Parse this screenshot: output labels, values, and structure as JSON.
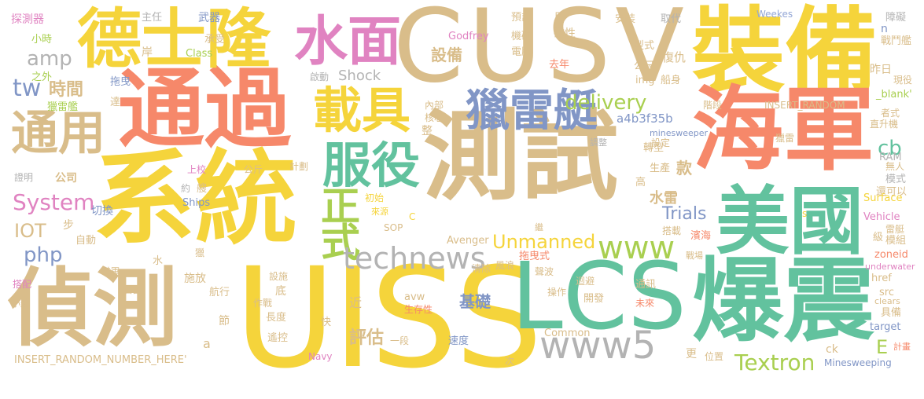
{
  "colors": {
    "tan": "#d9bd8a",
    "yellow": "#f5d43b",
    "orange": "#f6886a",
    "green": "#62c29e",
    "blue": "#8196c6",
    "pink": "#e083c1",
    "lime": "#a9cf50",
    "gray": "#b3b3b3",
    "lightblue": "#94a7d6",
    "lightgreen": "#9fd7a8"
  },
  "words": [
    "系統",
    "測試",
    "通過",
    "CUSV",
    "裝備",
    "UISS",
    "偵測",
    "德士隆",
    "海軍",
    "爆震",
    "LCS",
    "美國",
    "水面",
    "獵雷艇",
    "載具",
    "通用",
    "服役",
    "正式",
    "technews",
    "www",
    "www5",
    "delivery",
    "Unmanned",
    "Textron",
    "System",
    "amp",
    "Shock",
    "tw",
    "時間",
    "php",
    "IOT",
    "評估",
    "基礎",
    "設備",
    "cb",
    "款",
    "水雷",
    "Trials",
    "E",
    "公司",
    "探測器",
    "主任",
    "武器",
    "預計",
    "月",
    "安裝",
    "取代",
    "Weekes",
    "障礙",
    "小時",
    "承受",
    "Godfrey",
    "機砲",
    "磁性",
    "型式",
    "戰鬥艦",
    "岸",
    "Class",
    "電腦",
    "去年",
    "公尺",
    "復仇",
    "n",
    "之外",
    "拖曳",
    "img",
    "船身",
    "現役",
    "昨日",
    "啟動",
    "內部",
    "INSERT_RANDOM",
    "_blank'",
    "達",
    "核心",
    "a4b3f35b",
    "者式",
    "獵雷艦",
    "階段",
    "直升機",
    "minesweeper",
    "整",
    "轉型",
    "調整",
    "設定",
    "獵雷",
    "上校",
    "公斤",
    "計劃",
    "生產",
    "證明",
    "無人",
    "RAM",
    "約",
    "艘",
    "高",
    "模式",
    "還可以",
    "初始",
    "Ships",
    "切換",
    "雷艇",
    "Surface",
    "Vehicle",
    "步",
    "來源",
    "自動",
    "SOP",
    "C",
    "s",
    "Avenger",
    "繼",
    "搭載",
    "濱海",
    "模組",
    "級",
    "水",
    "獵",
    "拖曳式",
    "戰場",
    "zoneid",
    "美軍",
    "清除",
    "風浪",
    "聲波",
    "迴避",
    "underwater",
    "搭配",
    "施放",
    "首圖",
    "設施",
    "航行",
    "操作",
    "通訊",
    "src",
    "開發",
    "作戰",
    "底",
    "近",
    "avw",
    "未來",
    "clears",
    "小艇",
    "具備",
    "生存性",
    "長度",
    "target",
    "節",
    "快",
    "a",
    "遙控",
    "一段",
    "速度",
    "Common",
    "計畫",
    "ck",
    "INSERT_RANDOM_NUMBER_HERE'",
    "Navy",
    "次",
    "更",
    "位置",
    "Minesweeping",
    "href"
  ]
}
